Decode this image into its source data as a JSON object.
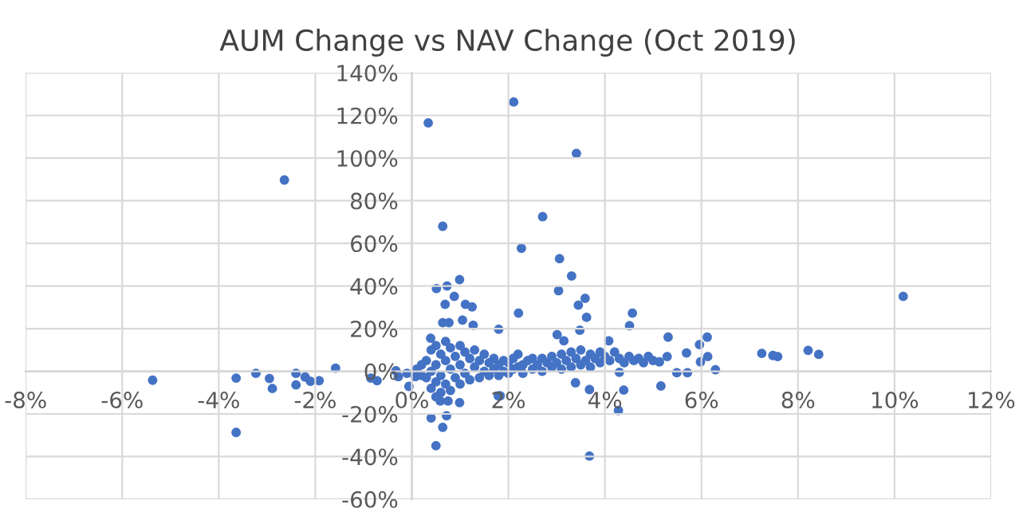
{
  "chart_data": {
    "type": "scatter",
    "title": "AUM Change vs NAV Change (Oct 2019)",
    "x": [
      -5.37,
      -2.64,
      -3.64,
      -3.64,
      -3.23,
      -2.95,
      -2.89,
      -2.4,
      -2.4,
      -2.21,
      -2.1,
      -1.92,
      -1.58,
      -0.85,
      -0.72,
      -0.33,
      -0.28,
      -0.06,
      0.07,
      0.34,
      0.64,
      0.51,
      0.73,
      0.99,
      0.69,
      0.88,
      1.11,
      1.25,
      0.64,
      0.77,
      1.05,
      1.27,
      1.8,
      0.39,
      0.59,
      0.75,
      0.99,
      0.4,
      0.72,
      0.64,
      0.5,
      1.83,
      2.11,
      3.41,
      2.71,
      2.27,
      3.06,
      3.31,
      3.04,
      2.21,
      3.59,
      3.45,
      3.62,
      4.57,
      4.51,
      3.48,
      3.01,
      3.15,
      4.08,
      5.31,
      6.12,
      5.96,
      5.69,
      5.29,
      10.18,
      7.25,
      7.48,
      7.58,
      8.21,
      8.43,
      6.29,
      5.71,
      5.49,
      5.16,
      4.39,
      4.3,
      3.68,
      3.39,
      4.28,
      3.68,
      1.79,
      5.98,
      6.13,
      5.13,
      0.3,
      0.3,
      0.4,
      0.4,
      0.4,
      0.5,
      0.5,
      0.5,
      0.5,
      0.6,
      0.6,
      0.6,
      0.7,
      0.7,
      0.7,
      0.8,
      0.8,
      0.8,
      0.9,
      0.9,
      1.0,
      1.0,
      1.0,
      1.1,
      1.1,
      1.2,
      1.2,
      1.3,
      1.3,
      1.4,
      1.4,
      1.5,
      1.5,
      1.6,
      1.6,
      1.7,
      1.7,
      1.8,
      1.8,
      1.9,
      1.9,
      2.0,
      2.0,
      2.1,
      2.1,
      2.2,
      2.2,
      2.3,
      2.3,
      2.4,
      2.5,
      2.5,
      2.6,
      2.7,
      2.7,
      2.8,
      2.9,
      2.9,
      3.0,
      3.1,
      3.1,
      3.2,
      3.3,
      3.3,
      3.4,
      3.5,
      3.5,
      3.6,
      3.7,
      3.7,
      3.8,
      3.9,
      3.9,
      4.0,
      4.1,
      4.2,
      4.3,
      4.4,
      4.5,
      4.6,
      4.7,
      4.8,
      4.9,
      5.0,
      -0.1,
      0.1,
      0.2,
      0.2
    ],
    "series": [
      {
        "color": "#4472c4",
        "values": [
          -4.2,
          89.7,
          -3.2,
          -28.7,
          -1,
          -3.4,
          -8.1,
          -1,
          -6.4,
          -2.7,
          -4.7,
          -4.4,
          1.5,
          -3.2,
          -4.4,
          0.2,
          -2.5,
          -7.1,
          -2.5,
          116.5,
          68,
          38.8,
          40,
          43,
          31.4,
          35.1,
          31.4,
          30.2,
          22.8,
          22.8,
          24,
          21.6,
          19.7,
          15.5,
          -14,
          -14,
          -14.7,
          -21.9,
          -20.9,
          -26.3,
          -34.9,
          -11.5,
          126.3,
          102.2,
          72.5,
          57.7,
          52.8,
          44.7,
          37.8,
          27.3,
          34.2,
          31,
          25.3,
          27.3,
          21.4,
          19.2,
          17.2,
          14.3,
          14.3,
          16,
          16,
          12.5,
          8.6,
          6.9,
          35.1,
          8.4,
          7.4,
          6.9,
          9.8,
          7.9,
          0.7,
          -0.7,
          -0.7,
          -6.9,
          -8.8,
          -0.5,
          -8.6,
          -5.4,
          -18.4,
          -39.8,
          -11.5,
          4.4,
          6.9,
          4.4,
          5,
          -3,
          10,
          0,
          -8,
          12,
          3,
          -5,
          -12,
          8,
          -2,
          -10,
          14,
          5,
          -6,
          11,
          1,
          -9,
          7,
          -3,
          12,
          3,
          -6,
          9,
          -1,
          6,
          -4,
          10,
          2,
          5,
          -3,
          8,
          0,
          4,
          -2,
          6,
          1,
          3,
          -2,
          5,
          0,
          4,
          -1,
          6,
          1,
          8,
          2,
          3,
          -1,
          5,
          1,
          6,
          3,
          0,
          6,
          4,
          2,
          7,
          4,
          1,
          8,
          5,
          2,
          9,
          6,
          3,
          10,
          5,
          8,
          2,
          6,
          9,
          4,
          7,
          5,
          9,
          6,
          4,
          7,
          5,
          6,
          4,
          7,
          5,
          -1,
          1,
          -2,
          3
        ]
      }
    ],
    "marker": "circle",
    "xlim": [
      -8,
      12
    ],
    "ylim": [
      -60,
      140
    ],
    "xticks": [
      {
        "value": -8,
        "label": "-8%"
      },
      {
        "value": -6,
        "label": "-6%"
      },
      {
        "value": -4,
        "label": "-4%"
      },
      {
        "value": -2,
        "label": "-2%"
      },
      {
        "value": 0,
        "label": "0%"
      },
      {
        "value": 2,
        "label": "2%"
      },
      {
        "value": 4,
        "label": "4%"
      },
      {
        "value": 6,
        "label": "6%"
      },
      {
        "value": 8,
        "label": "8%"
      },
      {
        "value": 10,
        "label": "10%"
      },
      {
        "value": 12,
        "label": "12%"
      }
    ],
    "yticks": [
      {
        "value": -60,
        "label": "-60%"
      },
      {
        "value": -40,
        "label": "-40%"
      },
      {
        "value": -20,
        "label": "-20%"
      },
      {
        "value": 0,
        "label": "0%"
      },
      {
        "value": 20,
        "label": "20%"
      },
      {
        "value": 40,
        "label": "40%"
      },
      {
        "value": 60,
        "label": "60%"
      },
      {
        "value": 80,
        "label": "80%"
      },
      {
        "value": 100,
        "label": "100%"
      },
      {
        "value": 120,
        "label": "120%"
      },
      {
        "value": 140,
        "label": "140%"
      }
    ],
    "grid": true
  }
}
